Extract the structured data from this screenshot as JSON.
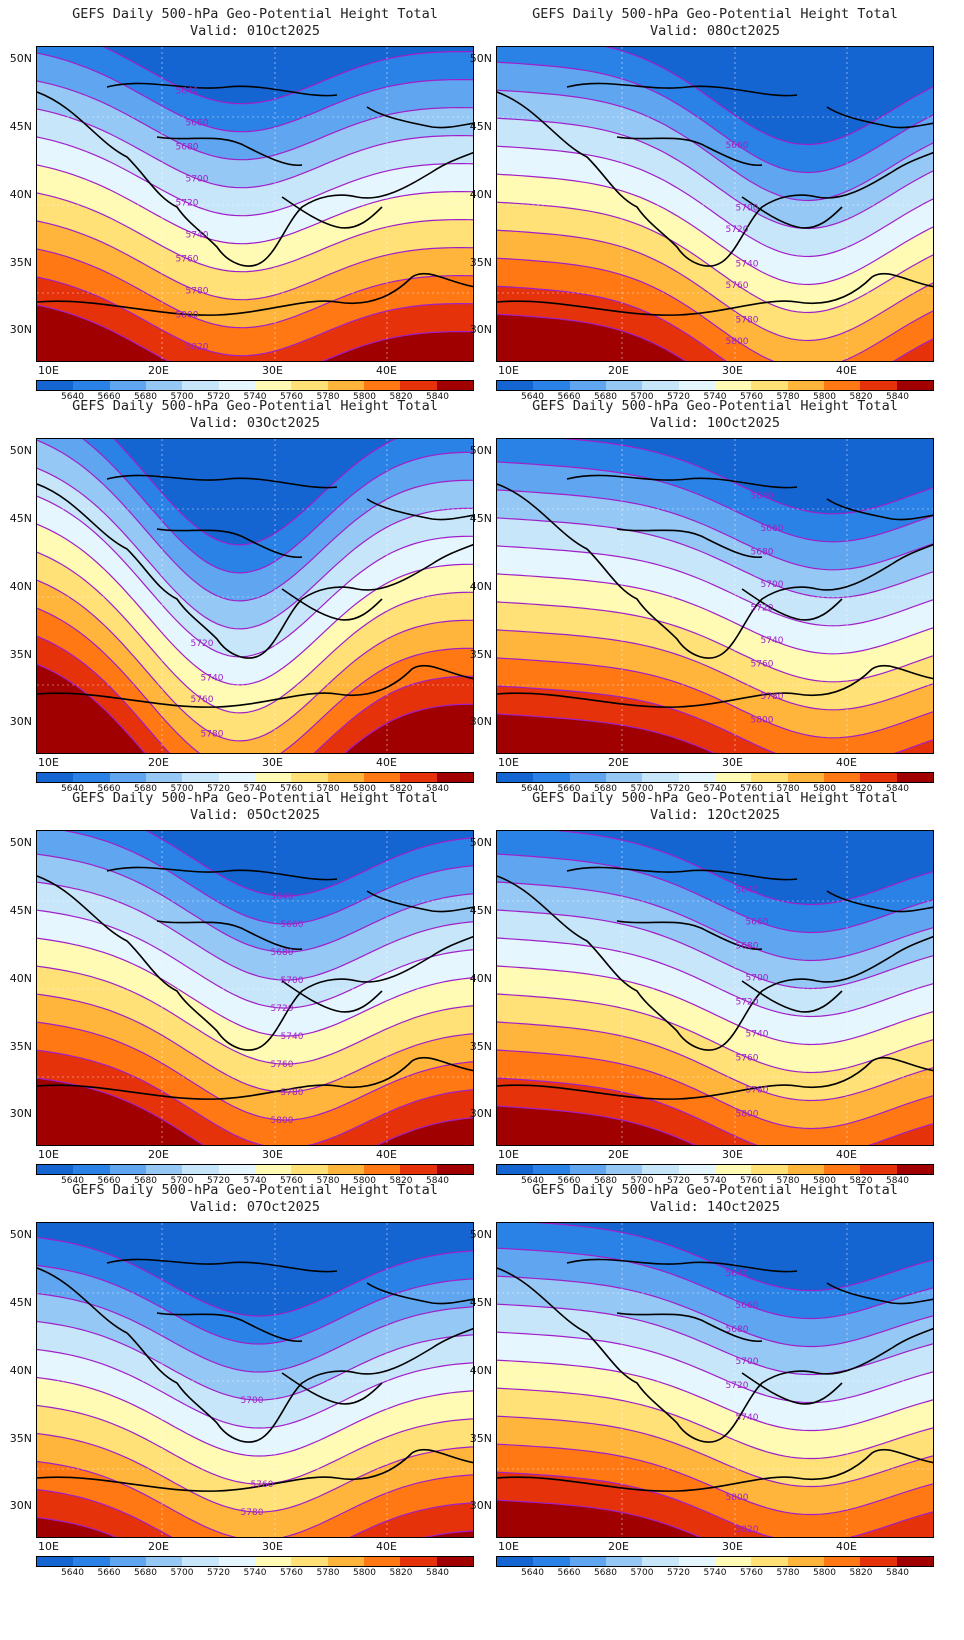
{
  "colorbar": {
    "levels": [
      "5640",
      "5660",
      "5680",
      "5700",
      "5720",
      "5740",
      "5760",
      "5780",
      "5800",
      "5820",
      "5840"
    ],
    "colors": [
      "#1464d2",
      "#2a82e6",
      "#5fa5f0",
      "#96c8f5",
      "#c8e6fa",
      "#e6f6ff",
      "#fffab4",
      "#ffe178",
      "#ffb43c",
      "#ff7814",
      "#e6320a",
      "#a00000"
    ]
  },
  "axes": {
    "lat_labels": [
      "50N",
      "45N",
      "40N",
      "35N",
      "30N"
    ],
    "lon_labels": [
      "10E",
      "20E",
      "30E",
      "40E"
    ]
  },
  "panels": [
    {
      "line1": "GEFS Daily 500-hPa Geo-Potential Height Total",
      "line2": "Valid: 01Oct2025",
      "contour_labels": [
        "5640",
        "5660",
        "5680",
        "5700",
        "5720",
        "5740",
        "5760",
        "5780",
        "5800",
        "5820"
      ]
    },
    {
      "line1": "GEFS Daily 500-hPa Geo-Potential Height Total",
      "line2": "Valid: 08Oct2025",
      "contour_labels": [
        "5660",
        "5700",
        "5720",
        "5740",
        "5760",
        "5780",
        "5800",
        "5820",
        "5840"
      ]
    },
    {
      "line1": "GEFS Daily 500-hPa Geo-Potential Height Total",
      "line2": "Valid: 03Oct2025",
      "contour_labels": [
        "5720",
        "5740",
        "5760",
        "5780"
      ]
    },
    {
      "line1": "GEFS Daily 500-hPa Geo-Potential Height Total",
      "line2": "Valid: 10Oct2025",
      "contour_labels": [
        "5640",
        "5660",
        "5680",
        "5700",
        "5720",
        "5740",
        "5760",
        "5780",
        "5800",
        "5820"
      ]
    },
    {
      "line1": "GEFS Daily 500-hPa Geo-Potential Height Total",
      "line2": "Valid: 05Oct2025",
      "contour_labels": [
        "5640",
        "5660",
        "5680",
        "5700",
        "5720",
        "5740",
        "5760",
        "5780",
        "5800",
        "5820"
      ]
    },
    {
      "line1": "GEFS Daily 500-hPa Geo-Potential Height Total",
      "line2": "Valid: 12Oct2025",
      "contour_labels": [
        "5640",
        "5660",
        "5680",
        "5700",
        "5720",
        "5740",
        "5760",
        "5780",
        "5800"
      ]
    },
    {
      "line1": "GEFS Daily 500-hPa Geo-Potential Height Total",
      "line2": "Valid: 07Oct2025",
      "contour_labels": [
        "5700",
        "5760",
        "5780",
        "5800",
        "5820"
      ]
    },
    {
      "line1": "GEFS Daily 500-hPa Geo-Potential Height Total",
      "line2": "Valid: 14Oct2025",
      "contour_labels": [
        "5640",
        "5660",
        "5680",
        "5700",
        "5720",
        "5740",
        "5800",
        "5820"
      ]
    }
  ]
}
